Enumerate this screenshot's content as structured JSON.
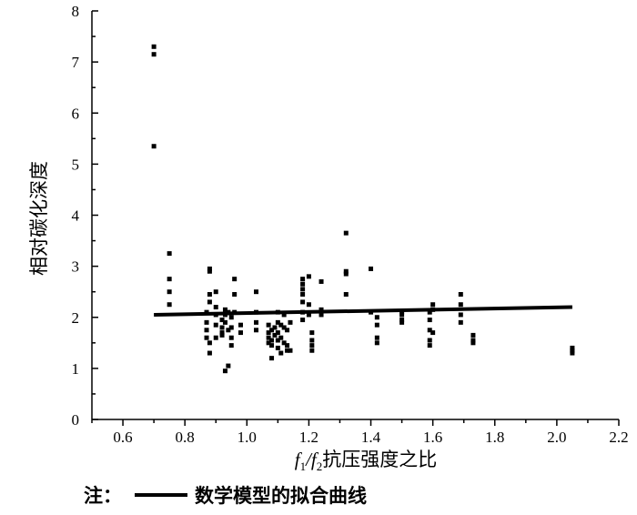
{
  "chart_data": {
    "type": "scatter",
    "title": "",
    "ylabel": "相对碳化深度",
    "xlabel": {
      "f1": "f",
      "sub1": "1",
      "slash": "/",
      "f2": "f",
      "sub2": "2",
      "suffix": "抗压强度之比"
    },
    "xlim": [
      0.5,
      2.2
    ],
    "ylim": [
      0,
      8
    ],
    "xticks": [
      0.6,
      0.8,
      1.0,
      1.2,
      1.4,
      1.6,
      1.8,
      2.0,
      2.2
    ],
    "xtick_labels": [
      "0.6",
      "0.8",
      "1.0",
      "1.2",
      "1.4",
      "1.6",
      "1.8",
      "2.0",
      "2.2"
    ],
    "yticks": [
      0,
      1,
      2,
      3,
      4,
      5,
      6,
      7,
      8
    ],
    "ytick_labels": [
      "0",
      "1",
      "2",
      "3",
      "4",
      "5",
      "6",
      "7",
      "8"
    ],
    "grid": false,
    "fit_line": {
      "x": [
        0.7,
        2.05
      ],
      "y": [
        2.05,
        2.2
      ]
    },
    "note": {
      "prefix": "注：",
      "text": "数学模型的拟合曲线"
    },
    "points": [
      [
        0.7,
        7.3
      ],
      [
        0.7,
        7.15
      ],
      [
        0.7,
        5.35
      ],
      [
        0.75,
        3.25
      ],
      [
        0.75,
        2.75
      ],
      [
        0.75,
        2.5
      ],
      [
        0.75,
        2.25
      ],
      [
        0.87,
        2.1
      ],
      [
        0.87,
        1.9
      ],
      [
        0.87,
        1.75
      ],
      [
        0.87,
        1.6
      ],
      [
        0.88,
        2.95
      ],
      [
        0.88,
        2.9
      ],
      [
        0.88,
        2.45
      ],
      [
        0.88,
        2.3
      ],
      [
        0.88,
        1.5
      ],
      [
        0.88,
        1.3
      ],
      [
        0.9,
        2.5
      ],
      [
        0.9,
        2.2
      ],
      [
        0.9,
        2.05
      ],
      [
        0.9,
        1.85
      ],
      [
        0.9,
        1.6
      ],
      [
        0.92,
        1.95
      ],
      [
        0.92,
        1.8
      ],
      [
        0.92,
        1.7
      ],
      [
        0.92,
        1.65
      ],
      [
        0.93,
        2.15
      ],
      [
        0.93,
        2.05
      ],
      [
        0.93,
        1.9
      ],
      [
        0.93,
        0.95
      ],
      [
        0.94,
        2.1
      ],
      [
        0.94,
        1.75
      ],
      [
        0.94,
        1.05
      ],
      [
        0.95,
        2.0
      ],
      [
        0.95,
        1.8
      ],
      [
        0.95,
        1.6
      ],
      [
        0.95,
        1.45
      ],
      [
        0.96,
        2.75
      ],
      [
        0.96,
        2.45
      ],
      [
        0.96,
        2.1
      ],
      [
        0.98,
        1.85
      ],
      [
        0.98,
        1.7
      ],
      [
        1.03,
        2.5
      ],
      [
        1.03,
        2.1
      ],
      [
        1.03,
        1.9
      ],
      [
        1.03,
        1.75
      ],
      [
        1.07,
        1.85
      ],
      [
        1.07,
        1.7
      ],
      [
        1.07,
        1.6
      ],
      [
        1.07,
        1.5
      ],
      [
        1.08,
        1.75
      ],
      [
        1.08,
        1.55
      ],
      [
        1.08,
        1.45
      ],
      [
        1.08,
        1.2
      ],
      [
        1.09,
        1.8
      ],
      [
        1.09,
        1.65
      ],
      [
        1.1,
        2.1
      ],
      [
        1.1,
        1.9
      ],
      [
        1.1,
        1.7
      ],
      [
        1.1,
        1.55
      ],
      [
        1.1,
        1.4
      ],
      [
        1.11,
        1.85
      ],
      [
        1.11,
        1.6
      ],
      [
        1.11,
        1.3
      ],
      [
        1.12,
        2.05
      ],
      [
        1.12,
        1.8
      ],
      [
        1.12,
        1.5
      ],
      [
        1.13,
        1.75
      ],
      [
        1.13,
        1.45
      ],
      [
        1.13,
        1.35
      ],
      [
        1.14,
        1.9
      ],
      [
        1.14,
        1.35
      ],
      [
        1.18,
        2.75
      ],
      [
        1.18,
        2.65
      ],
      [
        1.18,
        2.55
      ],
      [
        1.18,
        2.45
      ],
      [
        1.18,
        2.3
      ],
      [
        1.18,
        2.1
      ],
      [
        1.18,
        1.95
      ],
      [
        1.2,
        2.8
      ],
      [
        1.2,
        2.25
      ],
      [
        1.2,
        2.05
      ],
      [
        1.21,
        1.7
      ],
      [
        1.21,
        1.55
      ],
      [
        1.21,
        1.45
      ],
      [
        1.21,
        1.35
      ],
      [
        1.24,
        2.7
      ],
      [
        1.24,
        2.15
      ],
      [
        1.24,
        2.05
      ],
      [
        1.32,
        3.65
      ],
      [
        1.32,
        2.9
      ],
      [
        1.32,
        2.85
      ],
      [
        1.32,
        2.45
      ],
      [
        1.4,
        2.95
      ],
      [
        1.4,
        2.1
      ],
      [
        1.42,
        2.0
      ],
      [
        1.42,
        1.85
      ],
      [
        1.42,
        1.6
      ],
      [
        1.42,
        1.5
      ],
      [
        1.5,
        2.1
      ],
      [
        1.5,
        2.05
      ],
      [
        1.5,
        1.95
      ],
      [
        1.5,
        1.9
      ],
      [
        1.59,
        2.1
      ],
      [
        1.59,
        1.95
      ],
      [
        1.59,
        1.75
      ],
      [
        1.59,
        1.55
      ],
      [
        1.59,
        1.45
      ],
      [
        1.6,
        2.25
      ],
      [
        1.6,
        2.15
      ],
      [
        1.6,
        1.7
      ],
      [
        1.69,
        2.45
      ],
      [
        1.69,
        2.25
      ],
      [
        1.69,
        2.05
      ],
      [
        1.69,
        1.9
      ],
      [
        1.73,
        1.65
      ],
      [
        1.73,
        1.55
      ],
      [
        1.73,
        1.5
      ],
      [
        2.05,
        1.4
      ],
      [
        2.05,
        1.35
      ],
      [
        2.05,
        1.3
      ]
    ]
  }
}
